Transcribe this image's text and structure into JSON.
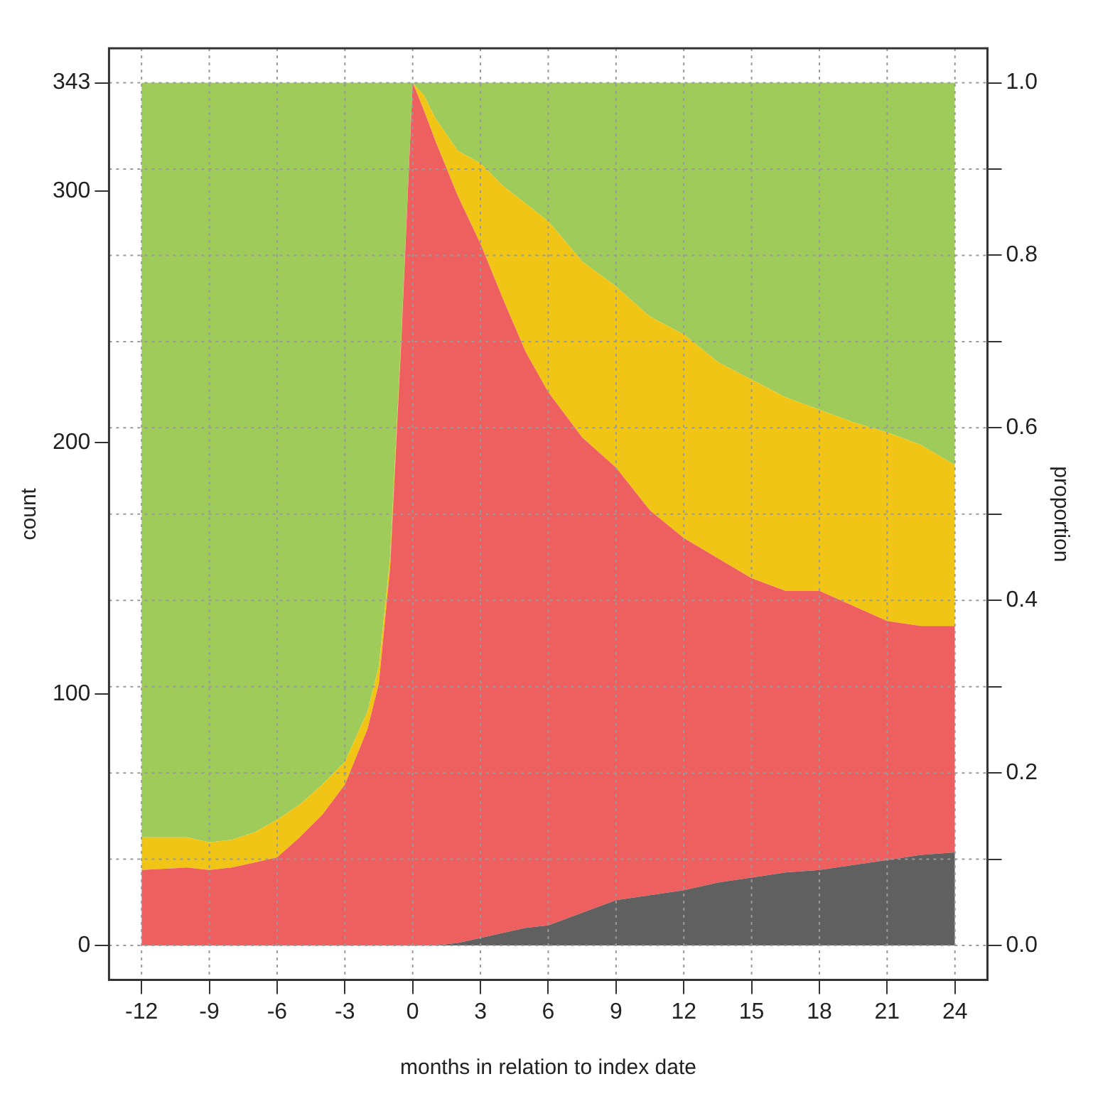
{
  "chart_data": {
    "type": "area",
    "stacked": true,
    "xlabel": "months in relation to index date",
    "ylabel": "count",
    "y2label": "proportion",
    "x": [
      -12,
      -10,
      -9,
      -8,
      -7,
      -6,
      -5,
      -4,
      -3,
      -2,
      -1.5,
      -1,
      -0.5,
      0,
      0.5,
      1,
      2,
      3,
      4,
      5,
      6,
      7.5,
      9,
      10.5,
      12,
      13.5,
      15,
      16.5,
      18,
      19.5,
      21,
      22.5,
      24
    ],
    "series": [
      {
        "color": "#606060",
        "values": [
          0,
          0,
          0,
          0,
          0,
          0,
          0,
          0,
          0,
          0,
          0,
          0,
          0,
          0,
          0,
          0,
          1,
          3,
          5,
          7,
          8,
          13,
          18,
          20,
          22,
          25,
          27,
          29,
          30,
          32,
          34,
          36,
          37
        ]
      },
      {
        "color": "#ee5f5f",
        "values": [
          30,
          31,
          30,
          31,
          33,
          35,
          43,
          52,
          64,
          86,
          104,
          150,
          241,
          343,
          332,
          320,
          297,
          276,
          252,
          229,
          212,
          189,
          172,
          153,
          140,
          129,
          119,
          112,
          111,
          103,
          95,
          91,
          90
        ]
      },
      {
        "color": "#f1c515",
        "values": [
          13,
          12,
          11,
          11,
          12,
          15,
          13,
          12,
          9,
          7,
          7,
          4,
          2,
          0,
          6,
          9,
          18,
          32,
          45,
          59,
          68,
          70,
          72,
          77,
          81,
          78,
          79,
          77,
          72,
          73,
          75,
          72,
          64
        ]
      },
      {
        "color": "#9fcb5a",
        "values": [
          300,
          300,
          302,
          301,
          298,
          293,
          287,
          279,
          270,
          250,
          232,
          189,
          100,
          0,
          5,
          14,
          27,
          32,
          41,
          48,
          55,
          71,
          81,
          93,
          100,
          111,
          118,
          125,
          130,
          135,
          139,
          144,
          152
        ]
      }
    ],
    "xlim": [
      -13.44,
      25.44
    ],
    "xticks": [
      -12,
      -9,
      -6,
      -3,
      0,
      3,
      6,
      9,
      12,
      15,
      18,
      21,
      24
    ],
    "ylim": [
      -13.72,
      356.72
    ],
    "yticks": [
      0,
      100,
      200,
      300,
      343
    ],
    "y2lim": [
      -0.04,
      1.04
    ],
    "y2ticks": [
      {
        "value": 0,
        "label": "0.0"
      },
      {
        "value": 0.1,
        "label": null
      },
      0.2,
      {
        "value": 0.3,
        "label": null
      },
      0.4,
      {
        "value": 0.5,
        "label": null
      },
      0.6,
      {
        "value": 0.7,
        "label": null
      },
      0.8,
      {
        "value": 0.9,
        "label": null
      },
      {
        "value": 1,
        "label": "1.0"
      }
    ],
    "grid": true
  }
}
